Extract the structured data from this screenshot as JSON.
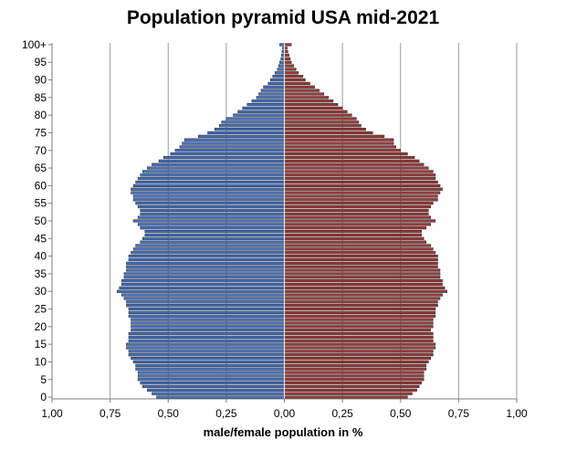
{
  "chart_data": {
    "type": "bar",
    "orientation": "horizontal",
    "title": "Population pyramid USA mid-2021",
    "xlabel": "male/female population  in %",
    "ylabel": "",
    "xlim": [
      -1.0,
      1.0
    ],
    "x_tick_values": [
      -1.0,
      -0.75,
      -0.5,
      -0.25,
      0,
      0.25,
      0.5,
      0.75,
      1.0
    ],
    "x_tick_labels": [
      "1,00",
      "0,75",
      "0,50",
      "0,25",
      "0,00",
      "0,25",
      "0,50",
      "0,75",
      "1,00"
    ],
    "y_tick_labels": [
      "0",
      "5",
      "10",
      "15",
      "20",
      "25",
      "30",
      "35",
      "40",
      "45",
      "50",
      "55",
      "60",
      "65",
      "70",
      "75",
      "80",
      "85",
      "90",
      "95",
      "100+"
    ],
    "age_groups": [
      "0",
      "1",
      "2",
      "3",
      "4",
      "5",
      "6",
      "7",
      "8",
      "9",
      "10",
      "11",
      "12",
      "13",
      "14",
      "15",
      "16",
      "17",
      "18",
      "19",
      "20",
      "21",
      "22",
      "23",
      "24",
      "25",
      "26",
      "27",
      "28",
      "29",
      "30",
      "31",
      "32",
      "33",
      "34",
      "35",
      "36",
      "37",
      "38",
      "39",
      "40",
      "41",
      "42",
      "43",
      "44",
      "45",
      "46",
      "47",
      "48",
      "49",
      "50",
      "51",
      "52",
      "53",
      "54",
      "55",
      "56",
      "57",
      "58",
      "59",
      "60",
      "61",
      "62",
      "63",
      "64",
      "65",
      "66",
      "67",
      "68",
      "69",
      "70",
      "71",
      "72",
      "73",
      "74",
      "75",
      "76",
      "77",
      "78",
      "79",
      "80",
      "81",
      "82",
      "83",
      "84",
      "85",
      "86",
      "87",
      "88",
      "89",
      "90",
      "91",
      "92",
      "93",
      "94",
      "95",
      "96",
      "97",
      "98",
      "99",
      "100+"
    ],
    "grid": true,
    "series": [
      {
        "name": "male",
        "color": "#4472c4",
        "values": [
          0.55,
          0.57,
          0.59,
          0.61,
          0.62,
          0.63,
          0.63,
          0.63,
          0.64,
          0.64,
          0.65,
          0.66,
          0.67,
          0.67,
          0.68,
          0.68,
          0.67,
          0.67,
          0.67,
          0.66,
          0.66,
          0.66,
          0.66,
          0.67,
          0.67,
          0.67,
          0.68,
          0.68,
          0.69,
          0.7,
          0.72,
          0.71,
          0.7,
          0.7,
          0.69,
          0.69,
          0.68,
          0.68,
          0.68,
          0.67,
          0.67,
          0.66,
          0.65,
          0.64,
          0.62,
          0.61,
          0.6,
          0.6,
          0.62,
          0.63,
          0.65,
          0.63,
          0.62,
          0.62,
          0.63,
          0.64,
          0.65,
          0.65,
          0.66,
          0.66,
          0.65,
          0.64,
          0.63,
          0.62,
          0.61,
          0.59,
          0.57,
          0.54,
          0.52,
          0.49,
          0.47,
          0.45,
          0.44,
          0.43,
          0.37,
          0.33,
          0.3,
          0.28,
          0.27,
          0.25,
          0.22,
          0.2,
          0.18,
          0.16,
          0.14,
          0.12,
          0.11,
          0.1,
          0.09,
          0.07,
          0.06,
          0.05,
          0.04,
          0.03,
          0.025,
          0.02,
          0.015,
          0.012,
          0.01,
          0.008,
          0.02
        ]
      },
      {
        "name": "female",
        "color": "#9e3a38",
        "values": [
          0.53,
          0.55,
          0.57,
          0.58,
          0.59,
          0.6,
          0.6,
          0.6,
          0.61,
          0.61,
          0.62,
          0.63,
          0.64,
          0.64,
          0.65,
          0.65,
          0.64,
          0.64,
          0.64,
          0.63,
          0.64,
          0.64,
          0.64,
          0.65,
          0.65,
          0.65,
          0.66,
          0.66,
          0.67,
          0.68,
          0.7,
          0.69,
          0.68,
          0.68,
          0.67,
          0.67,
          0.67,
          0.66,
          0.66,
          0.66,
          0.66,
          0.65,
          0.64,
          0.63,
          0.61,
          0.6,
          0.59,
          0.59,
          0.61,
          0.63,
          0.65,
          0.63,
          0.62,
          0.62,
          0.63,
          0.64,
          0.66,
          0.66,
          0.67,
          0.68,
          0.67,
          0.66,
          0.65,
          0.65,
          0.64,
          0.62,
          0.6,
          0.58,
          0.56,
          0.53,
          0.5,
          0.48,
          0.47,
          0.47,
          0.43,
          0.38,
          0.35,
          0.33,
          0.32,
          0.31,
          0.29,
          0.27,
          0.25,
          0.23,
          0.21,
          0.19,
          0.17,
          0.15,
          0.13,
          0.11,
          0.09,
          0.08,
          0.06,
          0.05,
          0.04,
          0.03,
          0.025,
          0.02,
          0.015,
          0.012,
          0.03
        ]
      }
    ]
  }
}
